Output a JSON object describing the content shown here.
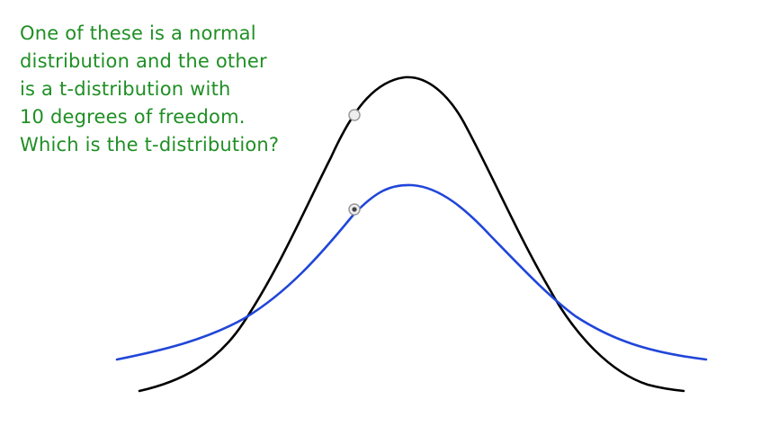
{
  "question": {
    "lines": [
      "One of these is a normal",
      "distribution and the other",
      "is a t-distribution with",
      "10 degrees of freedom.",
      "Which is the t-distribution?"
    ]
  },
  "colors": {
    "text": "#1f8f24",
    "curve_black": "#000000",
    "curve_blue": "#2046d8",
    "option_ring": "#9a9a9a"
  },
  "options": [
    {
      "curve": "black",
      "selected": false
    },
    {
      "curve": "blue",
      "selected": true
    }
  ]
}
